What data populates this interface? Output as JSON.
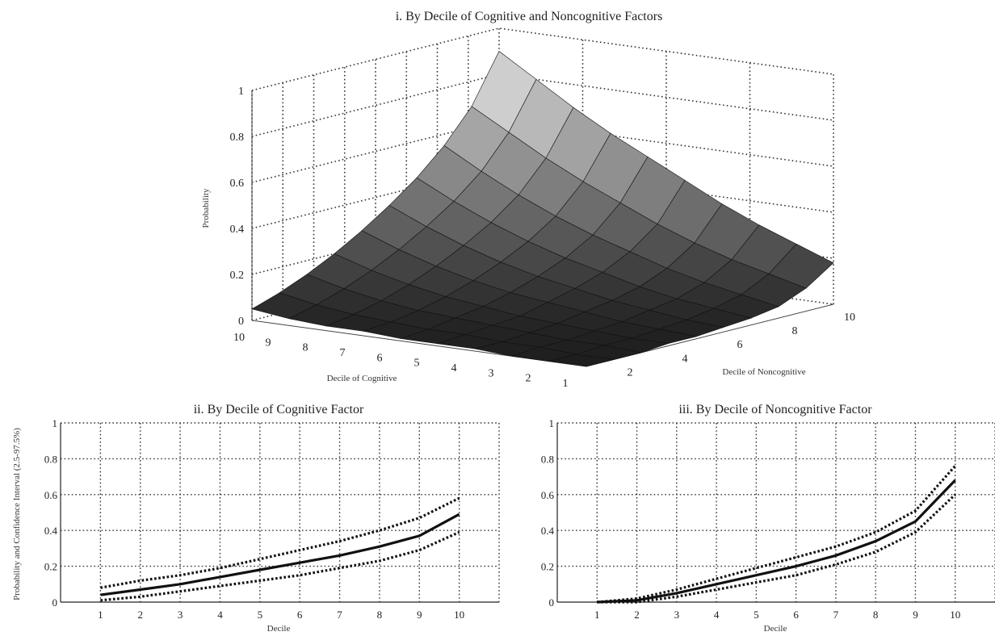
{
  "chart_data": [
    {
      "type": "surface",
      "title": "i. By Decile of Cognitive and Noncognitive Factors",
      "xlabel": "Decile of Cognitive",
      "ylabel": "Decile of Noncognitive",
      "zlabel": "Probability",
      "x_ticks": [
        "1",
        "2",
        "3",
        "4",
        "5",
        "6",
        "7",
        "8",
        "9",
        "10"
      ],
      "y_ticks": [
        "2",
        "4",
        "6",
        "8",
        "10"
      ],
      "z_ticks": [
        "0",
        "0.2",
        "0.4",
        "0.6",
        "0.8",
        "1"
      ],
      "zlim": [
        0,
        1
      ],
      "grid": true,
      "colormap": "gray",
      "z": [
        [
          0.0,
          0.0,
          0.0,
          0.01,
          0.01,
          0.02,
          0.03,
          0.05,
          0.1,
          0.18
        ],
        [
          0.0,
          0.0,
          0.01,
          0.01,
          0.02,
          0.03,
          0.05,
          0.08,
          0.14,
          0.24
        ],
        [
          0.0,
          0.01,
          0.01,
          0.02,
          0.03,
          0.05,
          0.07,
          0.11,
          0.18,
          0.3
        ],
        [
          0.01,
          0.01,
          0.02,
          0.03,
          0.05,
          0.07,
          0.1,
          0.15,
          0.23,
          0.37
        ],
        [
          0.01,
          0.02,
          0.03,
          0.04,
          0.07,
          0.1,
          0.14,
          0.2,
          0.29,
          0.45
        ],
        [
          0.01,
          0.02,
          0.04,
          0.06,
          0.09,
          0.13,
          0.18,
          0.25,
          0.36,
          0.53
        ],
        [
          0.02,
          0.03,
          0.05,
          0.08,
          0.12,
          0.17,
          0.23,
          0.31,
          0.43,
          0.61
        ],
        [
          0.02,
          0.04,
          0.07,
          0.11,
          0.16,
          0.22,
          0.29,
          0.38,
          0.51,
          0.7
        ],
        [
          0.03,
          0.06,
          0.1,
          0.15,
          0.21,
          0.28,
          0.36,
          0.46,
          0.6,
          0.8
        ],
        [
          0.05,
          0.09,
          0.14,
          0.2,
          0.27,
          0.35,
          0.44,
          0.55,
          0.69,
          0.9
        ]
      ]
    },
    {
      "type": "line",
      "title": "ii. By Decile of Cognitive Factor",
      "xlabel": "Decile",
      "ylabel": "Probability and Confidence Interval (2.5-97.5%)",
      "x": [
        1,
        2,
        3,
        4,
        5,
        6,
        7,
        8,
        9,
        10
      ],
      "xlim": [
        0,
        11
      ],
      "ylim": [
        0,
        1
      ],
      "yticks": [
        "0",
        "0.2",
        "0.4",
        "0.6",
        "0.8",
        "1"
      ],
      "grid": true,
      "series": [
        {
          "role": "estimate",
          "style": "solid",
          "values": [
            0.04,
            0.07,
            0.1,
            0.14,
            0.18,
            0.22,
            0.26,
            0.31,
            0.37,
            0.49
          ]
        },
        {
          "role": "upper",
          "style": "dotted",
          "values": [
            0.08,
            0.12,
            0.15,
            0.19,
            0.24,
            0.29,
            0.34,
            0.4,
            0.47,
            0.58
          ]
        },
        {
          "role": "lower",
          "style": "dotted",
          "values": [
            0.01,
            0.03,
            0.06,
            0.09,
            0.12,
            0.15,
            0.19,
            0.23,
            0.29,
            0.39
          ]
        }
      ]
    },
    {
      "type": "line",
      "title": "iii. By Decile of Noncognitive Factor",
      "xlabel": "Decile",
      "ylabel": "",
      "x": [
        1,
        2,
        3,
        4,
        5,
        6,
        7,
        8,
        9,
        10
      ],
      "xlim": [
        0,
        11
      ],
      "ylim": [
        0,
        1
      ],
      "yticks": [
        "0",
        "0.2",
        "0.4",
        "0.6",
        "0.8",
        "1"
      ],
      "grid": true,
      "series": [
        {
          "role": "estimate",
          "style": "solid",
          "values": [
            0.0,
            0.01,
            0.05,
            0.1,
            0.15,
            0.2,
            0.26,
            0.34,
            0.45,
            0.68
          ]
        },
        {
          "role": "upper",
          "style": "dotted",
          "values": [
            0.0,
            0.02,
            0.07,
            0.13,
            0.19,
            0.25,
            0.31,
            0.39,
            0.51,
            0.76
          ]
        },
        {
          "role": "lower",
          "style": "dotted",
          "values": [
            0.0,
            0.0,
            0.03,
            0.07,
            0.11,
            0.15,
            0.21,
            0.28,
            0.39,
            0.6
          ]
        }
      ]
    }
  ]
}
